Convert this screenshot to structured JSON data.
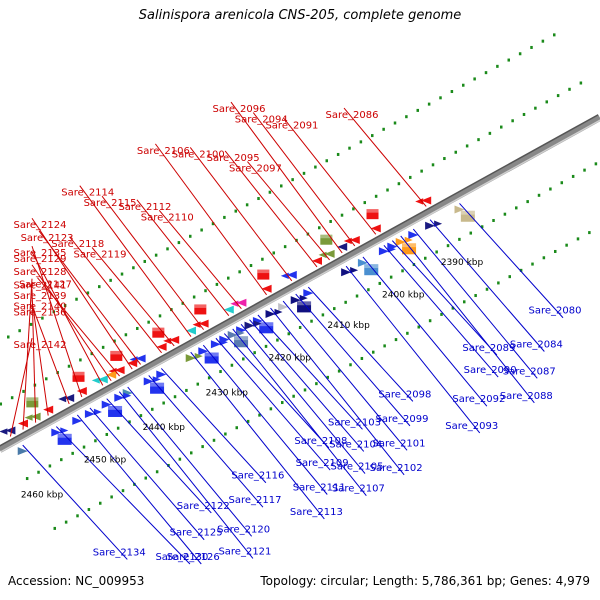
{
  "title": "Salinispora arenicola CNS-205, complete genome",
  "footer": {
    "accession": "Accession: NC_009953",
    "stats": "Topology: circular; Length: 5,786,361 bp; Genes: 4,979"
  },
  "colors": {
    "forward_label": "#0000cc",
    "reverse_label": "#cc0000",
    "backbone": "#888888",
    "tick": "#1a8a1a"
  },
  "kbp_ticks": [
    {
      "label": "2390 kbp",
      "t": 0.4
    },
    {
      "label": "2400 kbp",
      "t": 0.54
    },
    {
      "label": "2410 kbp",
      "t": 0.67
    },
    {
      "label": "2420 kbp",
      "t": 0.81
    },
    {
      "label": "2430 kbp",
      "t": 0.96
    },
    {
      "label": "2440 kbp",
      "t": 1.11
    },
    {
      "label": "2450 kbp",
      "t": 1.25
    },
    {
      "label": "2460 kbp",
      "t": 1.4
    }
  ],
  "forward_genes": [
    {
      "label": "Sare_2080",
      "t": 0.34,
      "color": "#c8b98c"
    },
    {
      "label": "Sare_2084",
      "t": 0.41,
      "color": "#1a1a80"
    },
    {
      "label": "Sare_2087",
      "t": 0.45,
      "color": "#2233ee"
    },
    {
      "label": "Sare_2088",
      "t": 0.48,
      "color": "#ff9a1a"
    },
    {
      "label": "Sare_2089",
      "t": 0.5,
      "color": "#2233ee"
    },
    {
      "label": "Sare_2090",
      "t": 0.52,
      "color": "#2233ee"
    },
    {
      "label": "Sare_2092",
      "t": 0.57,
      "color": "#4a8fd0"
    },
    {
      "label": "Sare_2093",
      "t": 0.61,
      "color": "#101080"
    },
    {
      "label": "Sare_2098",
      "t": 0.7,
      "color": "#2233ee"
    },
    {
      "label": "Sare_2099",
      "t": 0.73,
      "color": "#101080"
    },
    {
      "label": "Sare_2101",
      "t": 0.76,
      "color": "#c0c0c8"
    },
    {
      "label": "Sare_2102",
      "t": 0.79,
      "color": "#101080"
    },
    {
      "label": "Sare_2103",
      "t": 0.82,
      "color": "#2233ee"
    },
    {
      "label": "Sare_2104",
      "t": 0.84,
      "color": "#1a1a80"
    },
    {
      "label": "Sare_2105",
      "t": 0.86,
      "color": "#2233ee"
    },
    {
      "label": "Sare_2107",
      "t": 0.88,
      "color": "#5a7ab0"
    },
    {
      "label": "Sare_2108",
      "t": 0.9,
      "color": "#2233ee"
    },
    {
      "label": "Sare_2109",
      "t": 0.92,
      "color": "#2233ee"
    },
    {
      "label": "Sare_2111",
      "t": 0.95,
      "color": "#2233ee"
    },
    {
      "label": "Sare_2113",
      "t": 0.98,
      "color": "#7a9a3a"
    },
    {
      "label": "Sare_2116",
      "t": 1.05,
      "color": "#2233ee"
    },
    {
      "label": "Sare_2117",
      "t": 1.08,
      "color": "#2233ee"
    },
    {
      "label": "Sare_2120",
      "t": 1.13,
      "color": "#4a8fb0"
    },
    {
      "label": "Sare_2121",
      "t": 1.15,
      "color": "#2233ee"
    },
    {
      "label": "Sare_2122",
      "t": 1.18,
      "color": "#2233ee"
    },
    {
      "label": "Sare_2125",
      "t": 1.22,
      "color": "#2233ee"
    },
    {
      "label": "Sare_2126",
      "t": 1.25,
      "color": "#2233ee"
    },
    {
      "label": "Sare_2130",
      "t": 1.3,
      "color": "#2233ee"
    },
    {
      "label": "Sare_2134",
      "t": 1.38,
      "color": "#4a7aa8"
    }
  ],
  "reverse_genes": [
    {
      "label": "Sare_2086",
      "t": 0.4,
      "color": "#ee1111"
    },
    {
      "label": "Sare_2091",
      "t": 0.52,
      "color": "#ee1111"
    },
    {
      "label": "Sare_2094",
      "t": 0.57,
      "color": "#ee1111"
    },
    {
      "label": "Sare_2096",
      "t": 0.6,
      "color": "#1a1a80"
    },
    {
      "label": "Sare_2097",
      "t": 0.63,
      "color": "#7a9a3a"
    },
    {
      "label": "Sare_2095",
      "t": 0.66,
      "color": "#ee1111"
    },
    {
      "label": "Sare_2100",
      "t": 0.72,
      "color": "#2233ee"
    },
    {
      "label": "Sare_2106",
      "t": 0.78,
      "color": "#ee1111"
    },
    {
      "label": "Sare_2110",
      "t": 0.84,
      "color": "#ee22aa"
    },
    {
      "label": "Sare_2112",
      "t": 0.87,
      "color": "#22cccc"
    },
    {
      "label": "Sare_2115",
      "t": 0.93,
      "color": "#ee1111"
    },
    {
      "label": "Sare_2114",
      "t": 0.96,
      "color": "#22cccc"
    },
    {
      "label": "Sare_2119",
      "t": 1.0,
      "color": "#ee1111"
    },
    {
      "label": "Sare_2118",
      "t": 1.03,
      "color": "#ee1111"
    },
    {
      "label": "Sare_2123",
      "t": 1.08,
      "color": "#2233ee"
    },
    {
      "label": "Sare_2124",
      "t": 1.1,
      "color": "#ee1111"
    },
    {
      "label": "Sare_2127",
      "t": 1.13,
      "color": "#ee1111"
    },
    {
      "label": "Sare_2128",
      "t": 1.15,
      "color": "#ff9a1a"
    },
    {
      "label": "Sare_2129",
      "t": 1.17,
      "color": "#22cccc"
    },
    {
      "label": "Sare_2135",
      "t": 1.22,
      "color": "#ee1111"
    },
    {
      "label": "Sare_2136",
      "t": 1.25,
      "color": "#1a1a80"
    },
    {
      "label": "Sare_2140",
      "t": 1.3,
      "color": "#ee1111"
    },
    {
      "label": "Sare_2139",
      "t": 1.33,
      "color": "#7a9a3a"
    },
    {
      "label": "Sare_2141",
      "t": 1.36,
      "color": "#ee1111"
    },
    {
      "label": "Sare_2142",
      "t": 1.39,
      "color": "#1a1a80"
    }
  ]
}
